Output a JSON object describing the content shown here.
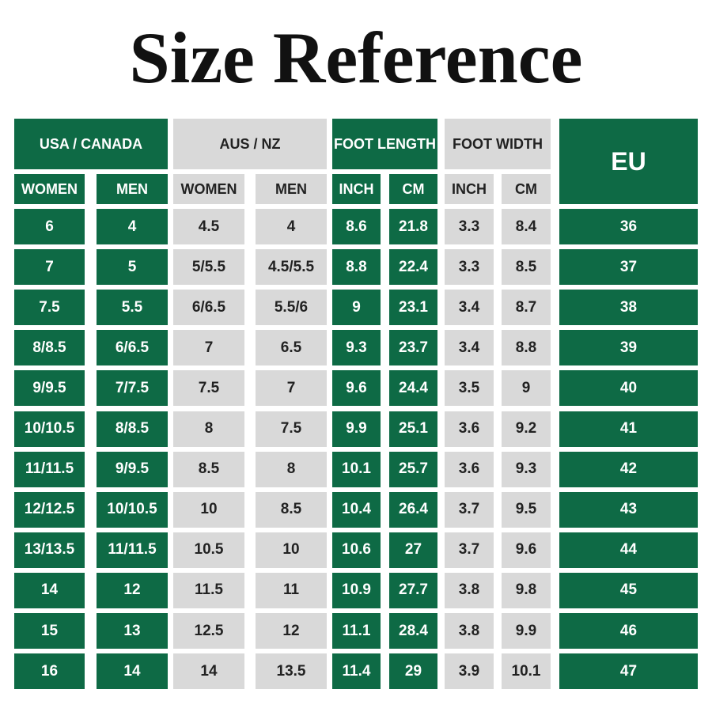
{
  "header": {
    "title": "Size Reference"
  },
  "table": {
    "groups": [
      "USA / CANADA",
      "AUS / NZ",
      "FOOT LENGTH",
      "FOOT WIDTH",
      "EU"
    ],
    "subheaders": [
      "WOMEN",
      "MEN",
      "WOMEN",
      "MEN",
      "INCH",
      "CM",
      "INCH",
      "CM"
    ],
    "rows": [
      [
        "6",
        "4",
        "4.5",
        "4",
        "8.6",
        "21.8",
        "3.3",
        "8.4",
        "36"
      ],
      [
        "7",
        "5",
        "5/5.5",
        "4.5/5.5",
        "8.8",
        "22.4",
        "3.3",
        "8.5",
        "37"
      ],
      [
        "7.5",
        "5.5",
        "6/6.5",
        "5.5/6",
        "9",
        "23.1",
        "3.4",
        "8.7",
        "38"
      ],
      [
        "8/8.5",
        "6/6.5",
        "7",
        "6.5",
        "9.3",
        "23.7",
        "3.4",
        "8.8",
        "39"
      ],
      [
        "9/9.5",
        "7/7.5",
        "7.5",
        "7",
        "9.6",
        "24.4",
        "3.5",
        "9",
        "40"
      ],
      [
        "10/10.5",
        "8/8.5",
        "8",
        "7.5",
        "9.9",
        "25.1",
        "3.6",
        "9.2",
        "41"
      ],
      [
        "11/11.5",
        "9/9.5",
        "8.5",
        "8",
        "10.1",
        "25.7",
        "3.6",
        "9.3",
        "42"
      ],
      [
        "12/12.5",
        "10/10.5",
        "10",
        "8.5",
        "10.4",
        "26.4",
        "3.7",
        "9.5",
        "43"
      ],
      [
        "13/13.5",
        "11/11.5",
        "10.5",
        "10",
        "10.6",
        "27",
        "3.7",
        "9.6",
        "44"
      ],
      [
        "14",
        "12",
        "11.5",
        "11",
        "10.9",
        "27.7",
        "3.8",
        "9.8",
        "45"
      ],
      [
        "15",
        "13",
        "12.5",
        "12",
        "11.1",
        "28.4",
        "3.8",
        "9.9",
        "46"
      ],
      [
        "16",
        "14",
        "14",
        "13.5",
        "11.4",
        "29",
        "3.9",
        "10.1",
        "47"
      ]
    ]
  }
}
